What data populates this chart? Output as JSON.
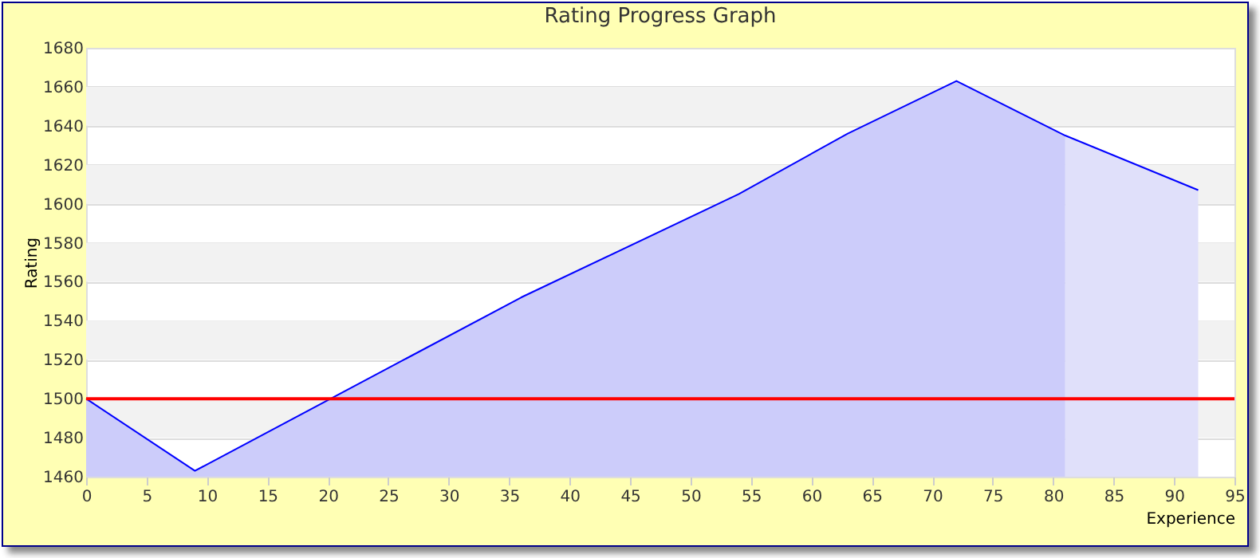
{
  "chart_data": {
    "type": "area",
    "title": "Rating Progress Graph",
    "xlabel": "Experience",
    "ylabel": "Rating",
    "series": [
      {
        "color": "#ccccfa",
        "x": [
          0,
          9,
          36,
          54,
          63,
          72,
          81
        ],
        "values": [
          1500,
          1463,
          1552,
          1605,
          1636,
          1663,
          1635
        ]
      },
      {
        "color": "#e0e0fa",
        "x": [
          81,
          92
        ],
        "values": [
          1635,
          1607
        ]
      },
      {
        "type": "line",
        "color": "#0000ff",
        "x": [
          0,
          9,
          36,
          54,
          63,
          72,
          81,
          92
        ],
        "values": [
          1500,
          1463,
          1552,
          1605,
          1636,
          1663,
          1635,
          1607
        ]
      }
    ],
    "xlim": [
      0,
      95
    ],
    "xticks": [
      0,
      5,
      10,
      15,
      20,
      25,
      30,
      35,
      40,
      45,
      50,
      55,
      60,
      65,
      70,
      75,
      80,
      85,
      90,
      95
    ],
    "ylim": [
      1460,
      1680
    ],
    "yticks": [
      1460,
      1480,
      1500,
      1520,
      1540,
      1560,
      1580,
      1600,
      1620,
      1640,
      1660,
      1680
    ],
    "grid": "y",
    "ref_lines": [
      {
        "axis": "y",
        "value": 1500,
        "color": "#ff0000"
      }
    ],
    "bands": [
      {
        "axis": "y",
        "from": 1480,
        "to": 1500,
        "color": "#f2f2f2"
      },
      {
        "axis": "y",
        "from": 1520,
        "to": 1540,
        "color": "#f2f2f2"
      },
      {
        "axis": "y",
        "from": 1560,
        "to": 1580,
        "color": "#f2f2f2"
      },
      {
        "axis": "y",
        "from": 1600,
        "to": 1620,
        "color": "#f2f2f2"
      },
      {
        "axis": "y",
        "from": 1640,
        "to": 1660,
        "color": "#f2f2f2"
      }
    ]
  }
}
